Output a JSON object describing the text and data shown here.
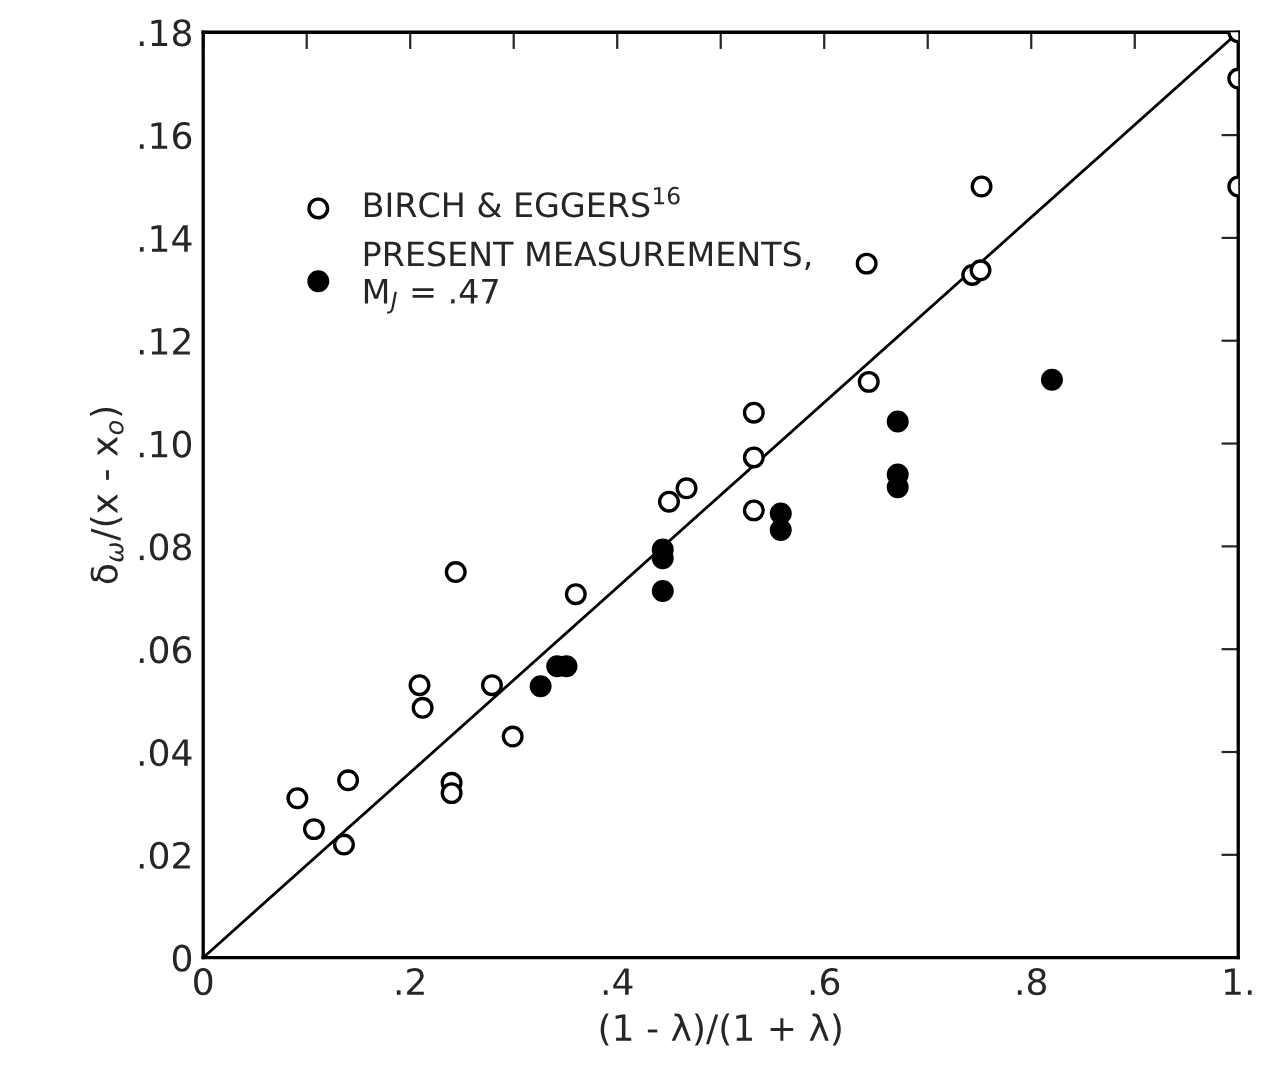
{
  "chart_data": {
    "type": "scatter",
    "xlabel": "(1 - λ)/(1 + λ)",
    "ylabel": "δ$_{ω}$/(x - x$_{o}$)",
    "xlim": [
      0,
      1.0
    ],
    "ylim": [
      0,
      0.18
    ],
    "xticks": [
      0,
      {
        "value": 0.1,
        "label": null
      },
      {
        "value": 0.2,
        "label": ".2"
      },
      {
        "value": 0.3,
        "label": null
      },
      {
        "value": 0.4,
        "label": ".4"
      },
      {
        "value": 0.5,
        "label": null
      },
      {
        "value": 0.6,
        "label": ".6"
      },
      {
        "value": 0.7,
        "label": null
      },
      {
        "value": 0.8,
        "label": ".8"
      },
      {
        "value": 0.9,
        "label": null
      },
      {
        "value": 1.0,
        "label": "1."
      }
    ],
    "yticks": [
      0,
      {
        "value": 0.02,
        "label": ".02"
      },
      {
        "value": 0.04,
        "label": ".04"
      },
      {
        "value": 0.06,
        "label": ".06"
      },
      {
        "value": 0.08,
        "label": ".08"
      },
      {
        "value": 0.1,
        "label": ".10"
      },
      {
        "value": 0.12,
        "label": ".12"
      },
      {
        "value": 0.14,
        "label": ".14"
      },
      {
        "value": 0.16,
        "label": ".16"
      },
      {
        "value": 0.18,
        "label": ".18"
      }
    ],
    "grid": false,
    "legend": "top left",
    "series": [
      {
        "name": "BIRCH & EGGERS$^{16}$",
        "marker": "circle",
        "color": "#ffffff",
        "x": [
          0.091,
          0.107,
          0.136,
          0.14,
          0.209,
          0.212,
          0.24,
          0.24,
          0.244,
          0.279,
          0.299,
          0.36,
          0.45,
          0.467,
          0.532,
          0.532,
          0.532,
          0.643,
          0.641,
          0.743,
          0.751,
          0.752,
          1.0,
          1.0,
          1.0
        ],
        "values": [
          0.031,
          0.025,
          0.022,
          0.0345,
          0.053,
          0.0486,
          0.034,
          0.032,
          0.075,
          0.053,
          0.043,
          0.0707,
          0.0887,
          0.0913,
          0.0973,
          0.106,
          0.087,
          0.112,
          0.135,
          0.1328,
          0.1337,
          0.15,
          0.18,
          0.171,
          0.15
        ]
      },
      {
        "name": "PRESENT MEASUREMENTS,\nM$_{J}$ = .47",
        "marker": "circle",
        "color": "#000000",
        "x": [
          0.326,
          0.342,
          0.351,
          0.444,
          0.444,
          0.444,
          0.558,
          0.558,
          0.671,
          0.671,
          0.671,
          0.82
        ],
        "values": [
          0.0528,
          0.0567,
          0.0567,
          0.0794,
          0.0777,
          0.0713,
          0.0864,
          0.0832,
          0.1043,
          0.094,
          0.0915,
          0.1124
        ]
      },
      {
        "type": "line",
        "color": "#000000",
        "x": [
          0,
          1.0
        ],
        "values": [
          0,
          0.18
        ]
      }
    ]
  }
}
